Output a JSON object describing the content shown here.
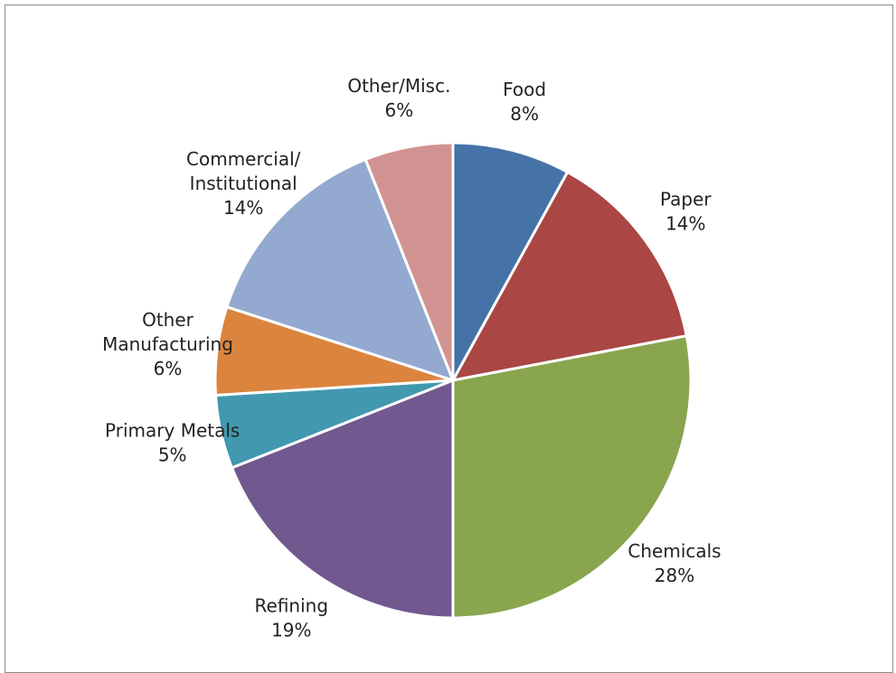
{
  "chart_data": {
    "type": "pie",
    "title": "",
    "slices": [
      {
        "category": "Food",
        "value": 8,
        "pct_label": "8%",
        "color": "#4572a7"
      },
      {
        "category": "Paper",
        "value": 14,
        "pct_label": "14%",
        "color": "#aa4643"
      },
      {
        "category": "Chemicals",
        "value": 28,
        "pct_label": "28%",
        "color": "#89a54e"
      },
      {
        "category": "Refining",
        "value": 19,
        "pct_label": "19%",
        "color": "#71588f"
      },
      {
        "category": "Primary Metals",
        "value": 5,
        "pct_label": "5%",
        "color": "#4198af"
      },
      {
        "category": "Other\nManufacturing",
        "value": 6,
        "pct_label": "6%",
        "color": "#db843d"
      },
      {
        "category": "Commercial/\nInstitutional",
        "value": 14,
        "pct_label": "14%",
        "color": "#93a9cf"
      },
      {
        "category": "Other/Misc.",
        "value": 6,
        "pct_label": "6%",
        "color": "#d19392"
      }
    ],
    "start_angle": "top",
    "direction": "clockwise",
    "slice_border_color": "#ffffff",
    "legend": "none"
  }
}
